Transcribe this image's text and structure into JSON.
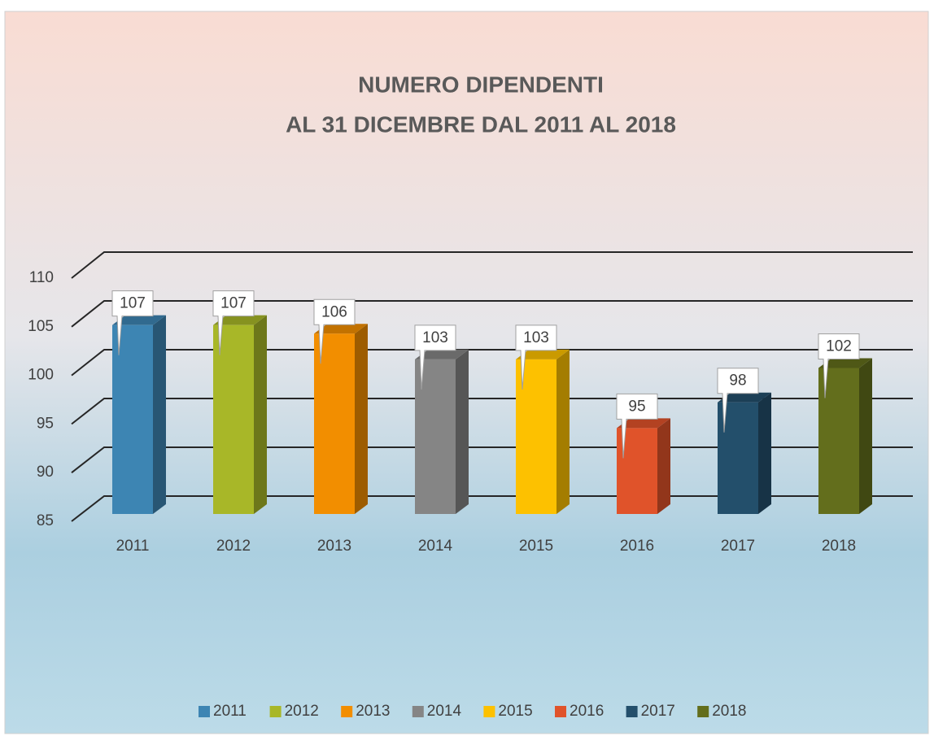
{
  "chart_data": {
    "type": "bar3d",
    "title": [
      "NUMERO DIPENDENTI",
      "AL 31 DICEMBRE DAL 2011 AL 2018"
    ],
    "categories": [
      "2011",
      "2012",
      "2013",
      "2014",
      "2015",
      "2016",
      "2017",
      "2018"
    ],
    "values": [
      107,
      107,
      106,
      103,
      103,
      95,
      98,
      102
    ],
    "colors": [
      "#3d85b3",
      "#a8b728",
      "#f28e00",
      "#858585",
      "#fdc100",
      "#e0532a",
      "#234f6b",
      "#636e1c"
    ],
    "ylim": [
      85,
      110
    ],
    "yticks": [
      85,
      90,
      95,
      100,
      105,
      110
    ],
    "grid": true,
    "legend": "bottom"
  }
}
